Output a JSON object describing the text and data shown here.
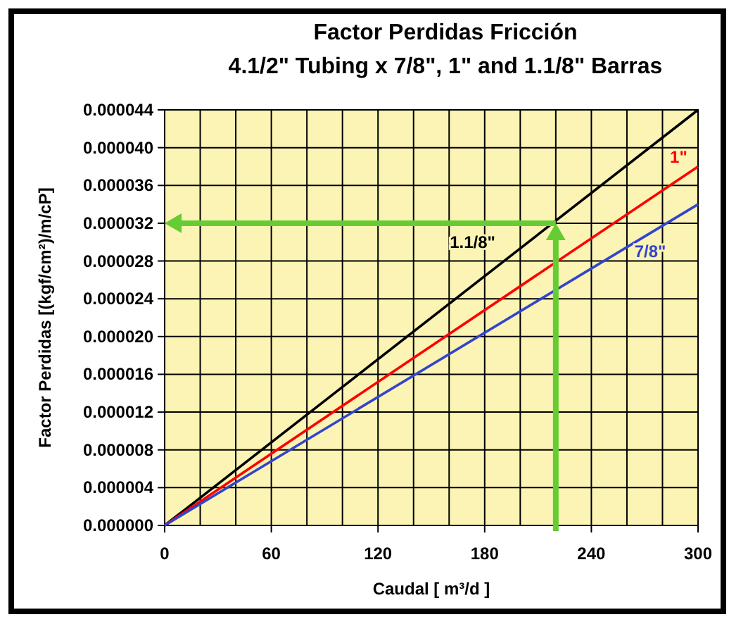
{
  "chart_data": {
    "type": "line",
    "title": "Factor Perdidas Fricción",
    "subtitle": "4.1/2\" Tubing x 7/8\", 1\" and 1.1/8\" Barras",
    "xlabel": "Caudal [ m³/d ]",
    "ylabel": "Factor Perdidas [(kgf/cm²)/m/cP]",
    "x": [
      0,
      300
    ],
    "series": [
      {
        "name": "1.1/8\"",
        "color": "#000000",
        "values": [
          0,
          4.4e-05
        ]
      },
      {
        "name": "1\"",
        "color": "#ff0000",
        "values": [
          0,
          3.8e-05
        ]
      },
      {
        "name": "7/8\"",
        "color": "#3344cc",
        "values": [
          0,
          3.4e-05
        ]
      }
    ],
    "xlim": [
      0,
      300
    ],
    "xticks": [
      0,
      {
        "value": 20,
        "label": null
      },
      {
        "value": 40,
        "label": null
      },
      60,
      {
        "value": 80,
        "label": null
      },
      {
        "value": 100,
        "label": null
      },
      120,
      {
        "value": 140,
        "label": null
      },
      {
        "value": 160,
        "label": null
      },
      180,
      {
        "value": 200,
        "label": null
      },
      {
        "value": 220,
        "label": null
      },
      240,
      {
        "value": 260,
        "label": null
      },
      {
        "value": 280,
        "label": null
      },
      300
    ],
    "ylim": [
      0,
      4.4e-05
    ],
    "yticks": [
      {
        "value": 0,
        "label": "0.000000"
      },
      {
        "value": 4e-06,
        "label": "0.000004"
      },
      {
        "value": 8e-06,
        "label": "0.000008"
      },
      {
        "value": 1.2e-05,
        "label": "0.000012"
      },
      {
        "value": 1.6e-05,
        "label": "0.000016"
      },
      {
        "value": 2e-05,
        "label": "0.000020"
      },
      {
        "value": 2.4e-05,
        "label": "0.000024"
      },
      {
        "value": 2.8e-05,
        "label": "0.000028"
      },
      {
        "value": 3.2e-05,
        "label": "0.000032"
      },
      {
        "value": 3.6e-05,
        "label": "0.000036"
      },
      {
        "value": 4e-05,
        "label": "0.000040"
      },
      {
        "value": 4.4e-05,
        "label": "0.000044"
      }
    ],
    "grid": true,
    "legend": false,
    "marker": "none",
    "line_style": "solid"
  }
}
